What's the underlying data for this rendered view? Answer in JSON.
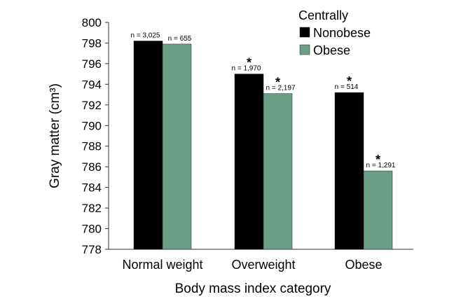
{
  "chart_data": {
    "type": "bar",
    "categories": [
      "Normal weight",
      "Overweight",
      "Obese"
    ],
    "series": [
      {
        "name": "Nonobese",
        "color": "#000000",
        "values": [
          798.2,
          795.0,
          793.2
        ],
        "n_labels": [
          "n = 3,025",
          "n = 1,970",
          "n = 514"
        ],
        "significant": [
          false,
          true,
          true
        ]
      },
      {
        "name": "Obese",
        "color": "#6b9e86",
        "values": [
          797.9,
          793.1,
          785.6
        ],
        "n_labels": [
          "n = 655",
          "n = 2,197",
          "n = 1,291"
        ],
        "significant": [
          false,
          true,
          true
        ]
      }
    ],
    "xlabel": "Body mass index category",
    "ylabel": "Gray matter (cm³)",
    "ylim": [
      778,
      800
    ],
    "yticks": [
      778,
      780,
      782,
      784,
      786,
      788,
      790,
      792,
      794,
      796,
      798,
      800
    ],
    "legend_title": "Centrally",
    "legend_position": "top-right",
    "significance_marker": "*",
    "grid": false
  }
}
